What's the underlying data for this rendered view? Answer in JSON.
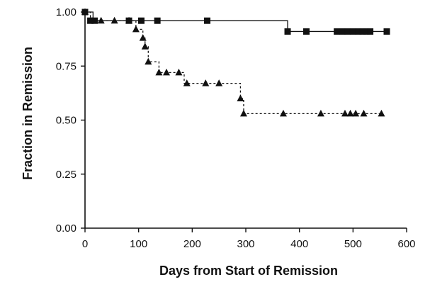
{
  "chart_data": {
    "type": "line",
    "title": "",
    "xlabel": "Days from Start of Remission",
    "ylabel": "Fraction in Remission",
    "xlim": [
      0,
      600
    ],
    "ylim": [
      0,
      1.0
    ],
    "x_ticks": [
      0,
      100,
      200,
      300,
      400,
      500,
      600
    ],
    "x_tick_labels": [
      "0",
      "100",
      "200",
      "300",
      "400",
      "500",
      "600"
    ],
    "y_ticks": [
      0,
      0.25,
      0.5,
      0.75,
      1.0
    ],
    "y_tick_labels": [
      "0.00",
      "0.25",
      "0.50",
      "0.75",
      "1.00"
    ],
    "grid": false,
    "legend": "none",
    "series": [
      {
        "line_style": "solid",
        "marker": "square",
        "color": "#111111",
        "steps": [
          [
            0,
            1.0
          ],
          [
            15,
            0.96
          ],
          [
            378,
            0.91
          ],
          [
            565,
            0.91
          ]
        ],
        "markers": [
          [
            0,
            1.0
          ],
          [
            10,
            0.96
          ],
          [
            18,
            0.96
          ],
          [
            82,
            0.96
          ],
          [
            105,
            0.96
          ],
          [
            135,
            0.96
          ],
          [
            228,
            0.96
          ],
          [
            378,
            0.91
          ],
          [
            413,
            0.91
          ],
          [
            470,
            0.91
          ],
          [
            480,
            0.91
          ],
          [
            490,
            0.91
          ],
          [
            500,
            0.91
          ],
          [
            510,
            0.91
          ],
          [
            518,
            0.91
          ],
          [
            525,
            0.91
          ],
          [
            532,
            0.91
          ],
          [
            563,
            0.91
          ]
        ]
      },
      {
        "line_style": "dashed",
        "marker": "triangle",
        "color": "#111111",
        "steps": [
          [
            0,
            1.0
          ],
          [
            10,
            0.96
          ],
          [
            95,
            0.92
          ],
          [
            108,
            0.88
          ],
          [
            112,
            0.84
          ],
          [
            118,
            0.77
          ],
          [
            138,
            0.72
          ],
          [
            185,
            0.67
          ],
          [
            290,
            0.6
          ],
          [
            296,
            0.53
          ],
          [
            555,
            0.53
          ]
        ],
        "markers": [
          [
            0,
            1.0
          ],
          [
            10,
            0.96
          ],
          [
            30,
            0.96
          ],
          [
            55,
            0.96
          ],
          [
            82,
            0.96
          ],
          [
            95,
            0.92
          ],
          [
            108,
            0.88
          ],
          [
            112,
            0.84
          ],
          [
            118,
            0.77
          ],
          [
            138,
            0.72
          ],
          [
            152,
            0.72
          ],
          [
            175,
            0.72
          ],
          [
            190,
            0.67
          ],
          [
            225,
            0.67
          ],
          [
            250,
            0.67
          ],
          [
            290,
            0.6
          ],
          [
            296,
            0.53
          ],
          [
            370,
            0.53
          ],
          [
            440,
            0.53
          ],
          [
            485,
            0.53
          ],
          [
            495,
            0.53
          ],
          [
            505,
            0.53
          ],
          [
            520,
            0.53
          ],
          [
            553,
            0.53
          ]
        ]
      }
    ]
  }
}
